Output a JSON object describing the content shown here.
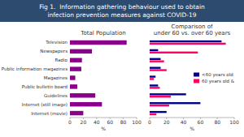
{
  "title": "Fig 1.  Information gathering behaviour used to obtain\ninfection prevention measures against COVID-19",
  "chart_data": [
    {
      "type": "bar",
      "orientation": "horizontal",
      "title": "Total Population",
      "categories": [
        "Television",
        "Newspapers",
        "Radio",
        "Public information magazines",
        "Magazines",
        "Public bulletin board",
        "Guidelines",
        "Internet (still image)",
        "Internet (movie)"
      ],
      "values": [
        85,
        33,
        18,
        17,
        8,
        11,
        38,
        48,
        20
      ],
      "color": "#8B008B",
      "xlabel": "%",
      "xlim": [
        0,
        100
      ],
      "xticks": [
        0,
        20,
        40,
        60,
        80,
        100
      ],
      "grid": false
    },
    {
      "type": "bar",
      "orientation": "horizontal",
      "title": "Comparison of\nunder 60 vs. over 60 years",
      "categories": [
        "Television",
        "Newspapers",
        "Radio",
        "Public information magazines",
        "Magazines",
        "Public bulletin board",
        "Guidelines",
        "Internet (still image)",
        "Internet (movie)"
      ],
      "series": [
        {
          "name": "<60 years old",
          "color": "#00008B",
          "values": [
            85,
            10,
            13,
            13,
            7,
            10,
            43,
            60,
            20
          ]
        },
        {
          "name": "60 years old &",
          "color": "#FF0066",
          "values": [
            90,
            57,
            17,
            20,
            5,
            12,
            25,
            23,
            8
          ]
        }
      ],
      "xlabel": "%",
      "xlim": [
        0,
        100
      ],
      "xticks": [
        0,
        20,
        40,
        60,
        80,
        100
      ],
      "grid": false,
      "tick_labels": "x",
      "legend": "right"
    }
  ]
}
